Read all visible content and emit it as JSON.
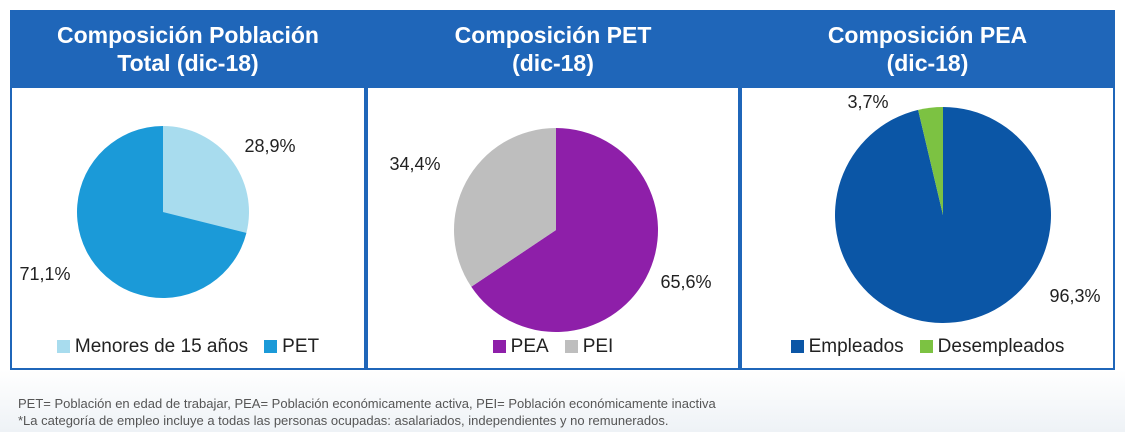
{
  "chart_data": [
    {
      "type": "pie",
      "title": [
        "Composición Población",
        "Total (dic-18)"
      ],
      "categories": [
        "Menores de 15 años",
        "PET"
      ],
      "values": [
        28.9,
        71.1
      ],
      "value_labels": [
        "28,9%",
        "71,1%"
      ],
      "colors": [
        "#a8dcee",
        "#1b9ad8"
      ]
    },
    {
      "type": "pie",
      "title": [
        "Composición PET",
        "(dic-18)"
      ],
      "categories": [
        "PEA",
        "PEI"
      ],
      "values": [
        65.6,
        34.4
      ],
      "value_labels": [
        "65,6%",
        "34,4%"
      ],
      "colors": [
        "#8e1fa9",
        "#bebebe"
      ]
    },
    {
      "type": "pie",
      "title": [
        "Composición PEA",
        "(dic-18)"
      ],
      "categories": [
        "Empleados",
        "Desempleados"
      ],
      "values": [
        96.3,
        3.7
      ],
      "value_labels": [
        "96,3%",
        "3,7%"
      ],
      "colors": [
        "#0b56a6",
        "#7cc242"
      ]
    }
  ],
  "notes": [
    "PET= Población en edad de trabajar, PEA= Población económicamente activa, PEI= Población económicamente inactiva",
    "*La categoría de empleo incluye a todas las personas ocupadas: asalariados, independientes y no remunerados."
  ]
}
